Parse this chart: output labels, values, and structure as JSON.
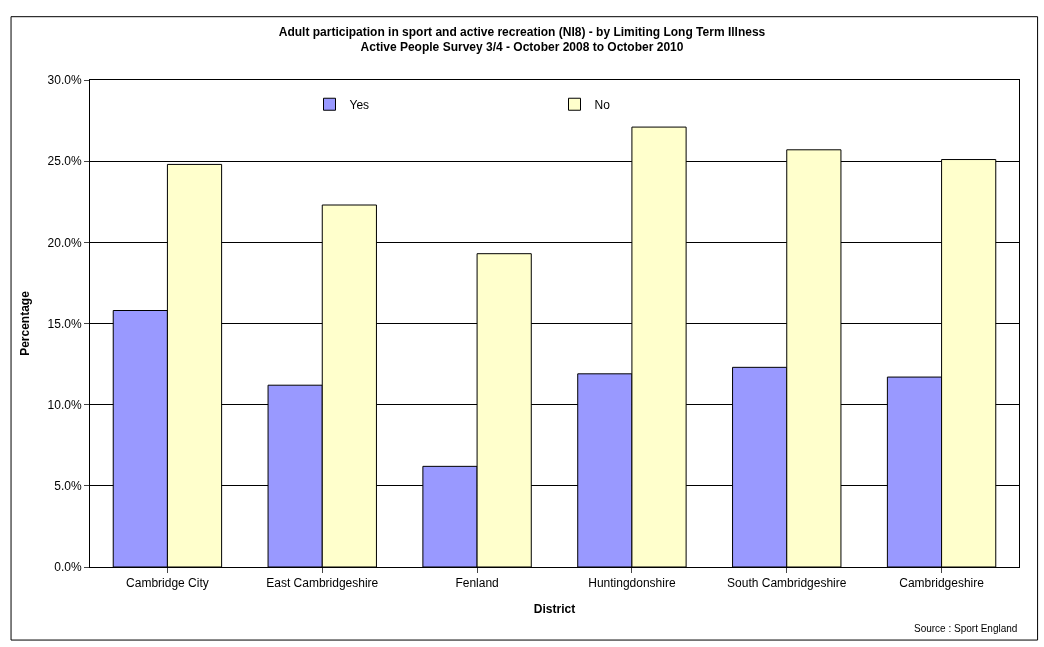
{
  "chart_data": {
    "type": "bar",
    "title": "Adult participation in sport and active recreation (NI8) - by Limiting Long Term Illness\nActive People Survey 3/4 - October 2008 to October 2010",
    "xlabel": "District",
    "ylabel": "Percentage",
    "categories": [
      "Cambridge City",
      "East Cambridgeshire",
      "Fenland",
      "Huntingdonshire",
      "South Cambridgeshire",
      "Cambridgeshire"
    ],
    "series": [
      {
        "name": "Yes",
        "color": "#9999ff",
        "values": [
          15.8,
          11.2,
          6.2,
          11.9,
          12.3,
          11.7
        ]
      },
      {
        "name": "No",
        "color": "#ffffcc",
        "values": [
          24.8,
          22.3,
          19.3,
          27.1,
          25.7,
          25.1
        ]
      }
    ],
    "ylim": [
      0,
      30
    ],
    "yticks": [
      {
        "value": 0,
        "label": "0.0%"
      },
      {
        "value": 5,
        "label": "5.0%"
      },
      {
        "value": 10,
        "label": "10.0%"
      },
      {
        "value": 15,
        "label": "15.0%"
      },
      {
        "value": 20,
        "label": "20.0%"
      },
      {
        "value": 25,
        "label": "25.0%"
      },
      {
        "value": 30,
        "label": "30.0%"
      }
    ],
    "grid": "y",
    "legend": "top",
    "annotations": [
      "Source : Sport England"
    ]
  }
}
